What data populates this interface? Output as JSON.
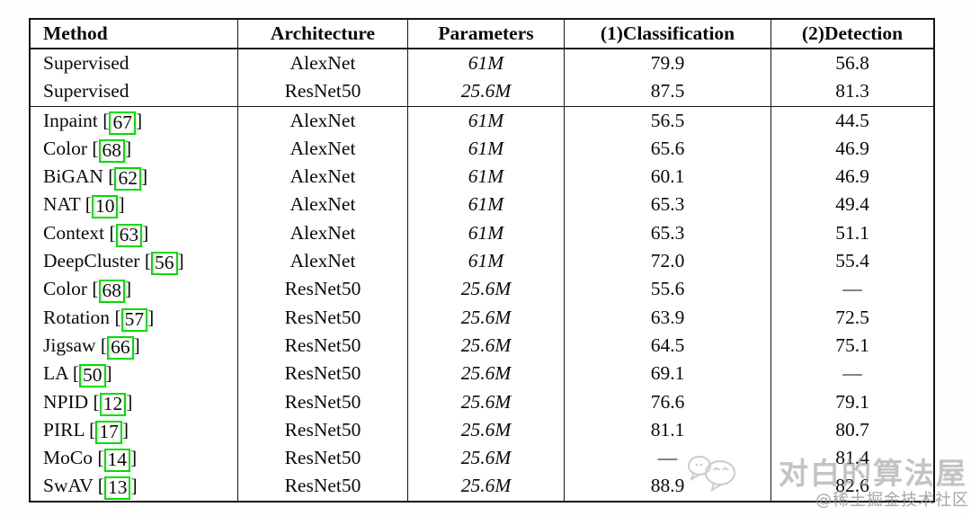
{
  "table": {
    "columns": [
      "Method",
      "Architecture",
      "Parameters",
      "(1)Classification",
      "(2)Detection"
    ],
    "bracket_open": "[",
    "bracket_close": "]",
    "cite_box_color": "#00dd00",
    "dash": "—",
    "rows": [
      {
        "method": "Supervised",
        "cite": null,
        "arch": "AlexNet",
        "params": "61",
        "params_unit": "M",
        "cls": "79.9",
        "det": "56.8",
        "group_end": false
      },
      {
        "method": "Supervised",
        "cite": null,
        "arch": "ResNet50",
        "params": "25.6",
        "params_unit": "M",
        "cls": "87.5",
        "det": "81.3",
        "group_end": true
      },
      {
        "method": "Inpaint",
        "cite": "67",
        "arch": "AlexNet",
        "params": "61",
        "params_unit": "M",
        "cls": "56.5",
        "det": "44.5",
        "group_end": false
      },
      {
        "method": "Color",
        "cite": "68",
        "arch": "AlexNet",
        "params": "61",
        "params_unit": "M",
        "cls": "65.6",
        "det": "46.9",
        "group_end": false
      },
      {
        "method": "BiGAN",
        "cite": "62",
        "arch": "AlexNet",
        "params": "61",
        "params_unit": "M",
        "cls": "60.1",
        "det": "46.9",
        "group_end": false
      },
      {
        "method": "NAT",
        "cite": "10",
        "arch": "AlexNet",
        "params": "61",
        "params_unit": "M",
        "cls": "65.3",
        "det": "49.4",
        "group_end": false
      },
      {
        "method": "Context",
        "cite": "63",
        "arch": "AlexNet",
        "params": "61",
        "params_unit": "M",
        "cls": "65.3",
        "det": "51.1",
        "group_end": false
      },
      {
        "method": "DeepCluster",
        "cite": "56",
        "arch": "AlexNet",
        "params": "61",
        "params_unit": "M",
        "cls": "72.0",
        "det": "55.4",
        "group_end": false
      },
      {
        "method": "Color",
        "cite": "68",
        "arch": "ResNet50",
        "params": "25.6",
        "params_unit": "M",
        "cls": "55.6",
        "det": "—",
        "group_end": false
      },
      {
        "method": "Rotation",
        "cite": "57",
        "arch": "ResNet50",
        "params": "25.6",
        "params_unit": "M",
        "cls": "63.9",
        "det": "72.5",
        "group_end": false
      },
      {
        "method": "Jigsaw",
        "cite": "66",
        "arch": "ResNet50",
        "params": "25.6",
        "params_unit": "M",
        "cls": "64.5",
        "det": "75.1",
        "group_end": false
      },
      {
        "method": "LA",
        "cite": "50",
        "arch": "ResNet50",
        "params": "25.6",
        "params_unit": "M",
        "cls": "69.1",
        "det": "—",
        "group_end": false
      },
      {
        "method": "NPID",
        "cite": "12",
        "arch": "ResNet50",
        "params": "25.6",
        "params_unit": "M",
        "cls": "76.6",
        "det": "79.1",
        "group_end": false
      },
      {
        "method": "PIRL",
        "cite": "17",
        "arch": "ResNet50",
        "params": "25.6",
        "params_unit": "M",
        "cls": "81.1",
        "det": "80.7",
        "group_end": false
      },
      {
        "method": "MoCo",
        "cite": "14",
        "arch": "ResNet50",
        "params": "25.6",
        "params_unit": "M",
        "cls": "—",
        "det": "81.4",
        "group_end": false
      },
      {
        "method": "SwAV",
        "cite": "13",
        "arch": "ResNet50",
        "params": "25.6",
        "params_unit": "M",
        "cls": "88.9",
        "det": "82.6",
        "group_end": false
      }
    ]
  },
  "watermark": {
    "title": "对白的算法屋",
    "subtitle": "@稀土掘金技术社区",
    "icon": "chat-bubbles-icon",
    "color": "#919191"
  }
}
